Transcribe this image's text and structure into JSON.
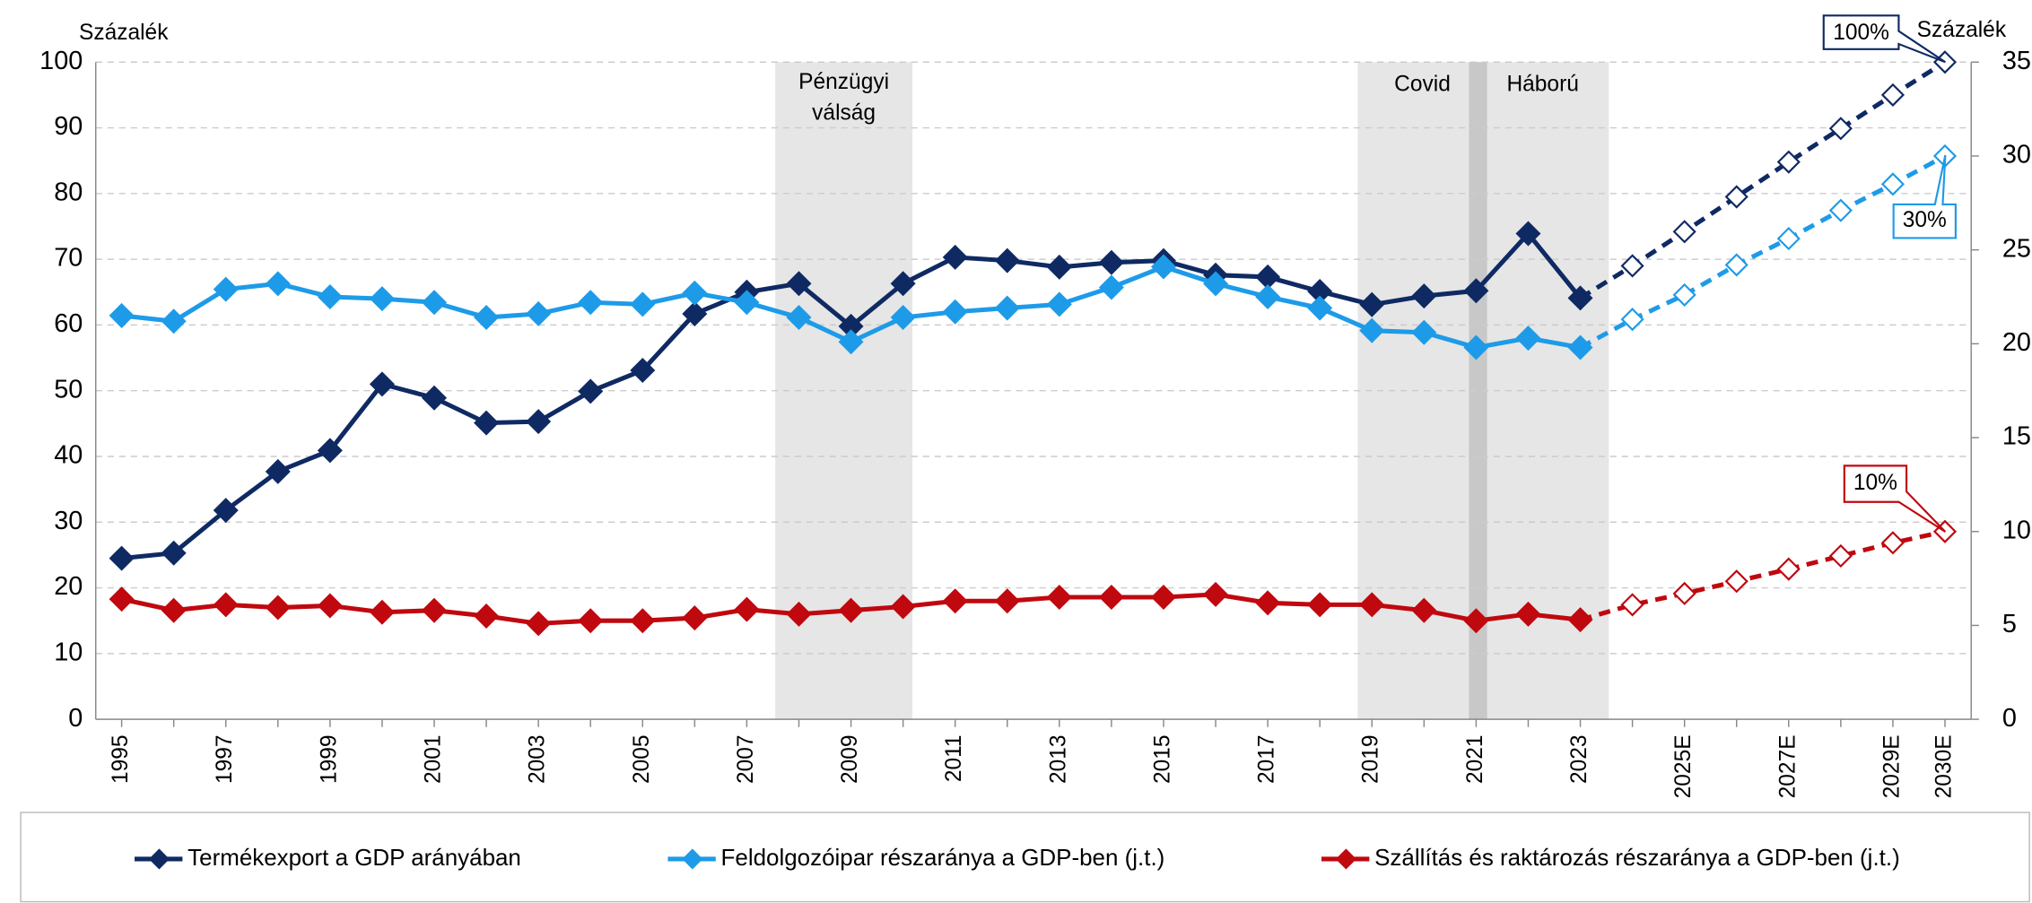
{
  "chart_data": {
    "type": "line",
    "y_label": "Százalék",
    "y2_label": "Százalék",
    "categories": [
      "1995",
      null,
      "1997",
      null,
      "1999",
      null,
      "2001",
      null,
      "2003",
      null,
      "2005",
      null,
      "2007",
      null,
      "2009",
      null,
      "2011",
      null,
      "2013",
      null,
      "2015",
      null,
      "2017",
      null,
      "2019",
      null,
      "2021",
      null,
      "2023",
      null,
      "2025E",
      null,
      "2027E",
      null,
      "2029E",
      "2030E"
    ],
    "dash_from": 28,
    "grid": true,
    "ylim": [
      0,
      100
    ],
    "yticks": [
      0,
      10,
      20,
      30,
      40,
      50,
      60,
      70,
      80,
      90,
      100
    ],
    "y2lim": [
      0,
      35
    ],
    "y2ticks": [
      0,
      5,
      10,
      15,
      20,
      25,
      30,
      35
    ],
    "legend": "bottom",
    "series": [
      {
        "name": "Termékexport a GDP arányában",
        "color": "#0f2a63",
        "axis": "y",
        "values": [
          24.5,
          25.3,
          31.8,
          37.7,
          40.9,
          51,
          48.9,
          45.1,
          45.3,
          49.9,
          53.1,
          61.7,
          65,
          66.3,
          59.8,
          66.3,
          70.3,
          69.8,
          68.8,
          69.5,
          69.8,
          67.6,
          67.3,
          65.1,
          63.1,
          64.4,
          65.2,
          73.9,
          64.1,
          69,
          74.2,
          79.5,
          84.8,
          89.9,
          95,
          100
        ]
      },
      {
        "name": "Feldolgozóipar részaránya a GDP-ben (j.t.)",
        "color": "#1e9be8",
        "axis": "y2",
        "values": [
          21.5,
          21.2,
          22.9,
          23.2,
          22.5,
          22.4,
          22.2,
          21.4,
          21.6,
          22.2,
          22.1,
          22.7,
          22.2,
          21.4,
          20.1,
          21.4,
          21.7,
          21.9,
          22.1,
          23.0,
          24.1,
          23.2,
          22.5,
          21.9,
          20.7,
          20.6,
          19.8,
          20.3,
          19.8,
          21.3,
          22.6,
          24.2,
          25.6,
          27.1,
          28.5,
          30
        ]
      },
      {
        "name": "Szállítás és raktározás részaránya a GDP-ben (j.t.)",
        "color": "#c0080f",
        "axis": "y2",
        "values": [
          6.4,
          5.8,
          6.1,
          5.95,
          6.05,
          5.7,
          5.8,
          5.5,
          5.1,
          5.25,
          5.25,
          5.4,
          5.85,
          5.6,
          5.8,
          6.0,
          6.3,
          6.3,
          6.5,
          6.5,
          6.5,
          6.65,
          6.2,
          6.1,
          6.1,
          5.8,
          5.25,
          5.6,
          5.3,
          6.1,
          6.7,
          7.35,
          8.0,
          8.7,
          9.4,
          10
        ]
      }
    ],
    "annotations": [
      "Pénzügyi",
      "válság",
      "Covid",
      "Háború",
      "100%",
      "30%",
      "10%"
    ]
  }
}
